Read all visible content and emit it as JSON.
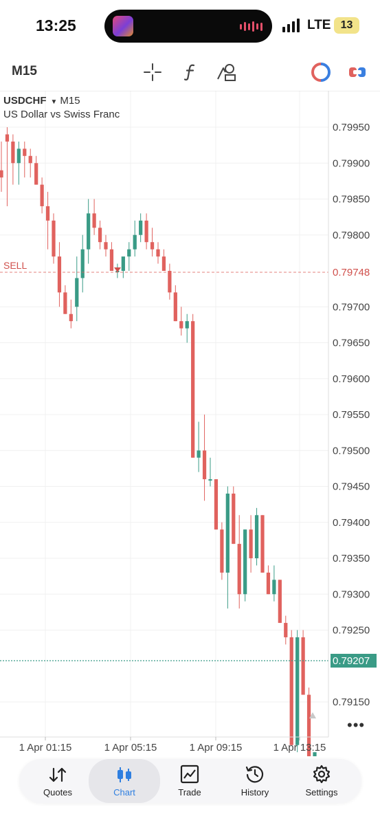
{
  "status_bar": {
    "time": "13:25",
    "network": "LTE",
    "battery": "13"
  },
  "toolbar": {
    "timeframe": "M15",
    "icons": [
      "crosshair-icon",
      "indicator-f-icon",
      "objects-icon",
      "quick-trade-icon",
      "one-click-trade-icon"
    ]
  },
  "chart": {
    "symbol": "USDCHF",
    "timeframe": "M15",
    "description": "US Dollar vs Swiss Franc",
    "sell_label": "SELL",
    "sell_price": "0.79748",
    "current_price": "0.79207",
    "colors": {
      "bull": "#3a9b86",
      "bear": "#e0625e",
      "grid": "#eeeeee",
      "sell_line": "#e0625e",
      "price_line": "#3a9b86"
    }
  },
  "chart_data": {
    "type": "candlestick",
    "price_axis_ticks": [
      "0.79950",
      "0.79900",
      "0.79850",
      "0.79800",
      "0.79748",
      "0.79700",
      "0.79650",
      "0.79600",
      "0.79550",
      "0.79500",
      "0.79450",
      "0.79400",
      "0.79350",
      "0.79300",
      "0.79250",
      "0.79207",
      "0.79150"
    ],
    "price_ticks": [
      0.7995,
      0.799,
      0.7985,
      0.798,
      0.797,
      0.7965,
      0.796,
      0.7955,
      0.795,
      0.7945,
      0.794,
      0.7935,
      0.793,
      0.7925,
      0.7915
    ],
    "time_ticks": [
      "1 Apr 01:15",
      "1 Apr 05:15",
      "1 Apr 09:15",
      "1 Apr 13:15"
    ],
    "ylim": [
      0.79115,
      0.8
    ]
  },
  "bottom_nav": {
    "tabs": [
      {
        "label": "Quotes",
        "icon": "quotes-icon"
      },
      {
        "label": "Chart",
        "icon": "chart-candles-icon",
        "active": true
      },
      {
        "label": "Trade",
        "icon": "trade-icon"
      },
      {
        "label": "History",
        "icon": "history-icon"
      },
      {
        "label": "Settings",
        "icon": "settings-icon"
      }
    ]
  }
}
